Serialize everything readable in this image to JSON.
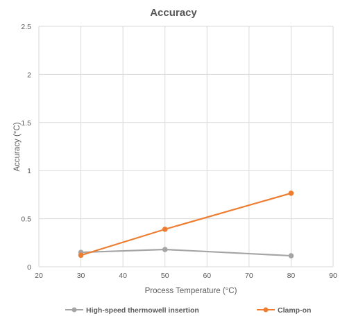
{
  "chart_data": {
    "type": "scatter",
    "title": "Accuracy",
    "xlabel": "Process Temperature (°C)",
    "ylabel": "Accuracy (°C)",
    "xlim": [
      20,
      90
    ],
    "ylim": [
      0,
      2.5
    ],
    "x_ticks": [
      "20",
      "30",
      "40",
      "50",
      "60",
      "70",
      "80",
      "90"
    ],
    "y_ticks": [
      "0",
      "0.5",
      "1",
      "1.5",
      "2",
      "2.5"
    ],
    "grid": true,
    "legend_position": "bottom",
    "series": [
      {
        "name": "High-speed thermowell insertion",
        "color": "#a5a5a5",
        "x": [
          30,
          50,
          80
        ],
        "y": [
          0.15,
          0.18,
          0.115
        ]
      },
      {
        "name": "Clamp-on",
        "color": "#ed7d31",
        "x": [
          30,
          50,
          80
        ],
        "y": [
          0.12,
          0.39,
          0.765
        ]
      }
    ]
  }
}
